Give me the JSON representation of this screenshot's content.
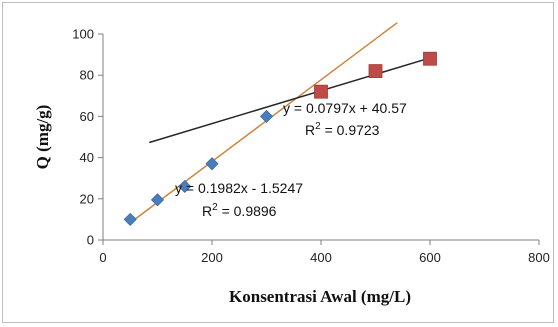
{
  "chart_data": {
    "type": "scatter",
    "title": "",
    "xlabel": "Konsentrasi Awal (mg/L)",
    "ylabel": "Q (mg/g)",
    "xlim": [
      0,
      800
    ],
    "ylim": [
      0,
      100
    ],
    "x_ticks": [
      "0",
      "200",
      "400",
      "600",
      "800"
    ],
    "y_ticks": [
      "0",
      "20",
      "40",
      "60",
      "80",
      "100"
    ],
    "grid": false,
    "legend": "none",
    "series": [
      {
        "marker": "diamond",
        "color": "#4a7ebb",
        "points": [
          [
            50,
            10
          ],
          [
            100,
            19.5
          ],
          [
            150,
            26
          ],
          [
            200,
            37
          ],
          [
            300,
            60
          ]
        ],
        "trendline": {
          "slope": 0.1982,
          "intercept": -1.5247,
          "x_range": [
            50,
            540
          ],
          "color": "#d0843a",
          "equation": "y = 0.1982x - 1.5247",
          "r2_label": "R",
          "r2_exp": "2",
          "r2_value": " = 0.9896"
        }
      },
      {
        "marker": "square",
        "color": "#be4b48",
        "points": [
          [
            400,
            72
          ],
          [
            500,
            82
          ],
          [
            600,
            88
          ]
        ],
        "trendline": {
          "slope": 0.0797,
          "intercept": 40.57,
          "x_range": [
            85,
            600
          ],
          "color": "#262626",
          "equation": "y = 0.0797x + 40.57",
          "r2_label": "R",
          "r2_exp": "2",
          "r2_value": " = 0.9723"
        }
      }
    ]
  }
}
